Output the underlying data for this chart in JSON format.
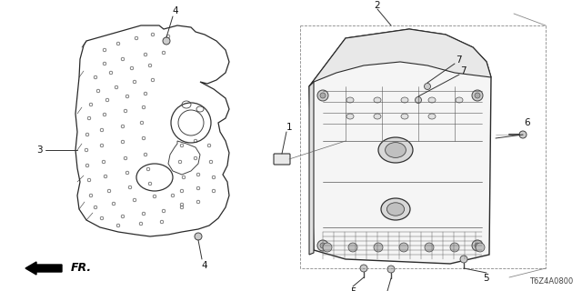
{
  "background_color": "#ffffff",
  "line_color": "#333333",
  "diagram_code": "T6Z4A0800",
  "part_label_color": "#111111",
  "label_fontsize": 7.5
}
